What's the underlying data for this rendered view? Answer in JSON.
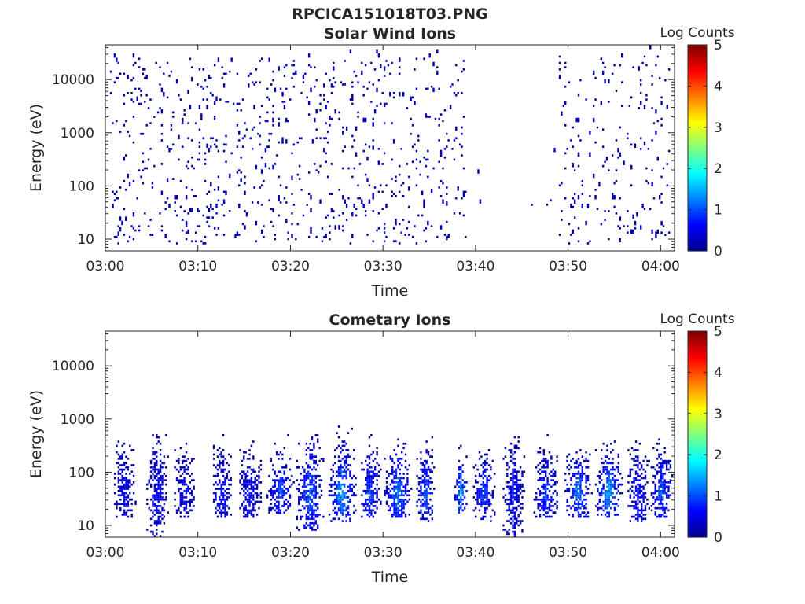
{
  "figure_title": "RPCICA151018T03.PNG",
  "colormap": [
    "#00008f",
    "#0000ff",
    "#0080ff",
    "#00ffff",
    "#80ff80",
    "#ffff00",
    "#ff8000",
    "#ff0000",
    "#800000"
  ],
  "chart_data": [
    {
      "type": "heatmap",
      "title": "Solar Wind Ions",
      "xlabel": "Time",
      "ylabel": "Energy (eV)",
      "x_ticks": [
        "03:00",
        "03:10",
        "03:20",
        "03:30",
        "03:40",
        "03:50",
        "04:00"
      ],
      "xlim_minutes": [
        0,
        61.5
      ],
      "y_ticks": [
        10,
        100,
        1000,
        10000
      ],
      "ylim": [
        6,
        45000
      ],
      "yscale": "log",
      "colorbar_label": "Log Counts",
      "colorbar_ticks": [
        0,
        1,
        2,
        3,
        4,
        5
      ],
      "clim": [
        0,
        5
      ],
      "activity": [
        {
          "t0": 0.5,
          "t1": 39.0,
          "e_min": 8,
          "e_max": 25000,
          "density": 0.3,
          "level_max": 0.3
        },
        {
          "t0": 40.0,
          "t1": 40.8,
          "e_min": 25,
          "e_max": 70,
          "density": 0.35,
          "level_max": 0.3
        },
        {
          "t0": 46.0,
          "t1": 48.5,
          "e_min": 30,
          "e_max": 250,
          "density": 0.05,
          "level_max": 0.3
        },
        {
          "t0": 49.0,
          "t1": 61.0,
          "e_min": 8,
          "e_max": 28000,
          "density": 0.22,
          "level_max": 0.3
        }
      ]
    },
    {
      "type": "heatmap",
      "title": "Cometary Ions",
      "xlabel": "Time",
      "ylabel": "Energy (eV)",
      "x_ticks": [
        "03:00",
        "03:10",
        "03:20",
        "03:30",
        "03:40",
        "03:50",
        "04:00"
      ],
      "xlim_minutes": [
        0,
        61.5
      ],
      "y_ticks": [
        10,
        100,
        1000,
        10000
      ],
      "ylim": [
        6,
        45000
      ],
      "yscale": "log",
      "colorbar_label": "Log Counts",
      "colorbar_ticks": [
        0,
        1,
        2,
        3,
        4,
        5
      ],
      "clim": [
        0,
        5
      ],
      "bursts": [
        {
          "t": 2.0,
          "w": 1.6,
          "e_min": 15,
          "e_max": 600,
          "peak_level": 0.8
        },
        {
          "t": 5.5,
          "w": 1.6,
          "e_min": 6,
          "e_max": 500,
          "peak_level": 0.8
        },
        {
          "t": 8.5,
          "w": 1.6,
          "e_min": 15,
          "e_max": 350,
          "peak_level": 0.9
        },
        {
          "t": 12.5,
          "w": 1.6,
          "e_min": 15,
          "e_max": 500,
          "peak_level": 0.9
        },
        {
          "t": 15.5,
          "w": 1.8,
          "e_min": 15,
          "e_max": 450,
          "peak_level": 0.9
        },
        {
          "t": 18.8,
          "w": 2.0,
          "e_min": 18,
          "e_max": 500,
          "peak_level": 1.3
        },
        {
          "t": 22.0,
          "w": 2.0,
          "e_min": 8,
          "e_max": 550,
          "peak_level": 1.5
        },
        {
          "t": 25.5,
          "w": 2.0,
          "e_min": 12,
          "e_max": 700,
          "peak_level": 1.9
        },
        {
          "t": 28.5,
          "w": 1.6,
          "e_min": 15,
          "e_max": 500,
          "peak_level": 1.3
        },
        {
          "t": 31.5,
          "w": 2.0,
          "e_min": 15,
          "e_max": 750,
          "peak_level": 1.6
        },
        {
          "t": 34.5,
          "w": 1.4,
          "e_min": 12,
          "e_max": 500,
          "peak_level": 1.4
        },
        {
          "t": 38.3,
          "w": 1.0,
          "e_min": 18,
          "e_max": 300,
          "peak_level": 1.9
        },
        {
          "t": 40.8,
          "w": 1.6,
          "e_min": 12,
          "e_max": 250,
          "peak_level": 1.3
        },
        {
          "t": 44.0,
          "w": 1.6,
          "e_min": 6,
          "e_max": 600,
          "peak_level": 0.9
        },
        {
          "t": 47.5,
          "w": 1.8,
          "e_min": 15,
          "e_max": 500,
          "peak_level": 1.2
        },
        {
          "t": 51.0,
          "w": 2.0,
          "e_min": 15,
          "e_max": 500,
          "peak_level": 1.6
        },
        {
          "t": 54.3,
          "w": 2.0,
          "e_min": 15,
          "e_max": 500,
          "peak_level": 1.9
        },
        {
          "t": 57.5,
          "w": 1.6,
          "e_min": 12,
          "e_max": 400,
          "peak_level": 1.0
        },
        {
          "t": 60.0,
          "w": 1.6,
          "e_min": 15,
          "e_max": 500,
          "peak_level": 1.4
        }
      ]
    }
  ]
}
